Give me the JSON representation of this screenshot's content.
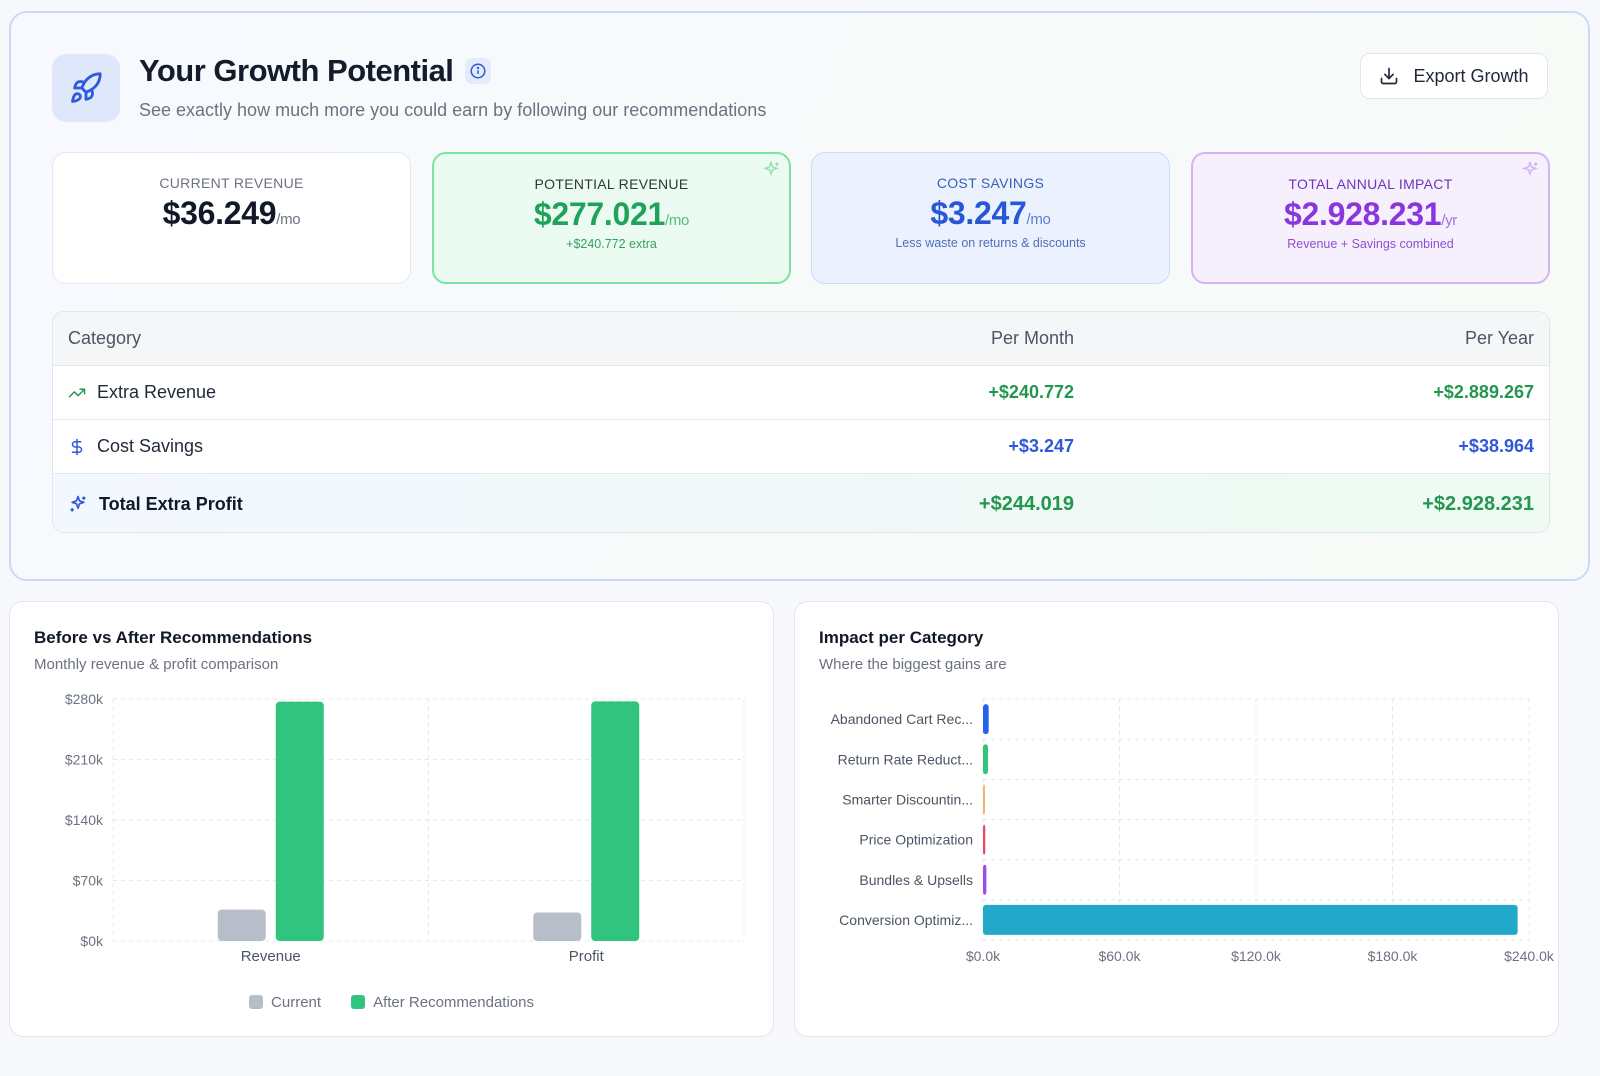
{
  "header": {
    "title": "Your Growth Potential",
    "subtitle": "See exactly how much more you could earn by following our recommendations",
    "export_label": "Export Growth"
  },
  "cards": {
    "current": {
      "label": "CURRENT REVENUE",
      "value": "$36.249",
      "unit": "/mo"
    },
    "potential": {
      "label": "POTENTIAL REVENUE",
      "value": "$277.021",
      "unit": "/mo",
      "note": "+$240.772 extra"
    },
    "savings": {
      "label": "COST SAVINGS",
      "value": "$3.247",
      "unit": "/mo",
      "note": "Less waste on returns & discounts"
    },
    "annual": {
      "label": "TOTAL ANNUAL IMPACT",
      "value": "$2.928.231",
      "unit": "/yr",
      "note": "Revenue + Savings combined"
    }
  },
  "table": {
    "headers": {
      "category": "Category",
      "month": "Per Month",
      "year": "Per Year"
    },
    "rows": [
      {
        "category": "Extra Revenue",
        "month": "+$240.772",
        "year": "+$2.889.267",
        "icon": "trending-up-icon"
      },
      {
        "category": "Cost Savings",
        "month": "+$3.247",
        "year": "+$38.964",
        "icon": "dollar-icon"
      },
      {
        "category": "Total Extra Profit",
        "month": "+$244.019",
        "year": "+$2.928.231",
        "icon": "sparkles-icon"
      }
    ]
  },
  "left_panel": {
    "title": "Before vs After Recommendations",
    "subtitle": "Monthly revenue & profit comparison"
  },
  "right_panel": {
    "title": "Impact per Category",
    "subtitle": "Where the biggest gains are"
  },
  "colors": {
    "current": "#b7bec9",
    "after": "#31c47e",
    "accent_blue": "#2f59d8"
  },
  "chart_data": [
    {
      "type": "bar",
      "categories": [
        "Revenue",
        "Profit"
      ],
      "series": [
        {
          "name": "Current",
          "values": [
            36249,
            33000
          ],
          "color": "#b7bec9"
        },
        {
          "name": "After Recommendations",
          "values": [
            277021,
            277300
          ],
          "color": "#31c47e"
        }
      ],
      "yticks": [
        "$0k",
        "$70k",
        "$140k",
        "$210k",
        "$280k"
      ],
      "ylim": [
        0,
        280000
      ],
      "grid": true,
      "legend": "bottom"
    },
    {
      "type": "bar",
      "orientation": "horizontal",
      "categories": [
        "Abandoned Cart Rec...",
        "Return Rate Reduct...",
        "Smarter Discountin...",
        "Price Optimization",
        "Bundles & Upsells",
        "Conversion Optimiz..."
      ],
      "values": [
        2500,
        2200,
        600,
        1000,
        1500,
        235000
      ],
      "colors": [
        "#2563eb",
        "#34c47c",
        "#f5b26b",
        "#ef4466",
        "#9b4ee0",
        "#22a9c9"
      ],
      "xticks": [
        "$0.0k",
        "$60.0k",
        "$120.0k",
        "$180.0k",
        "$240.0k"
      ],
      "xlim": [
        0,
        240000
      ],
      "grid": true
    }
  ]
}
